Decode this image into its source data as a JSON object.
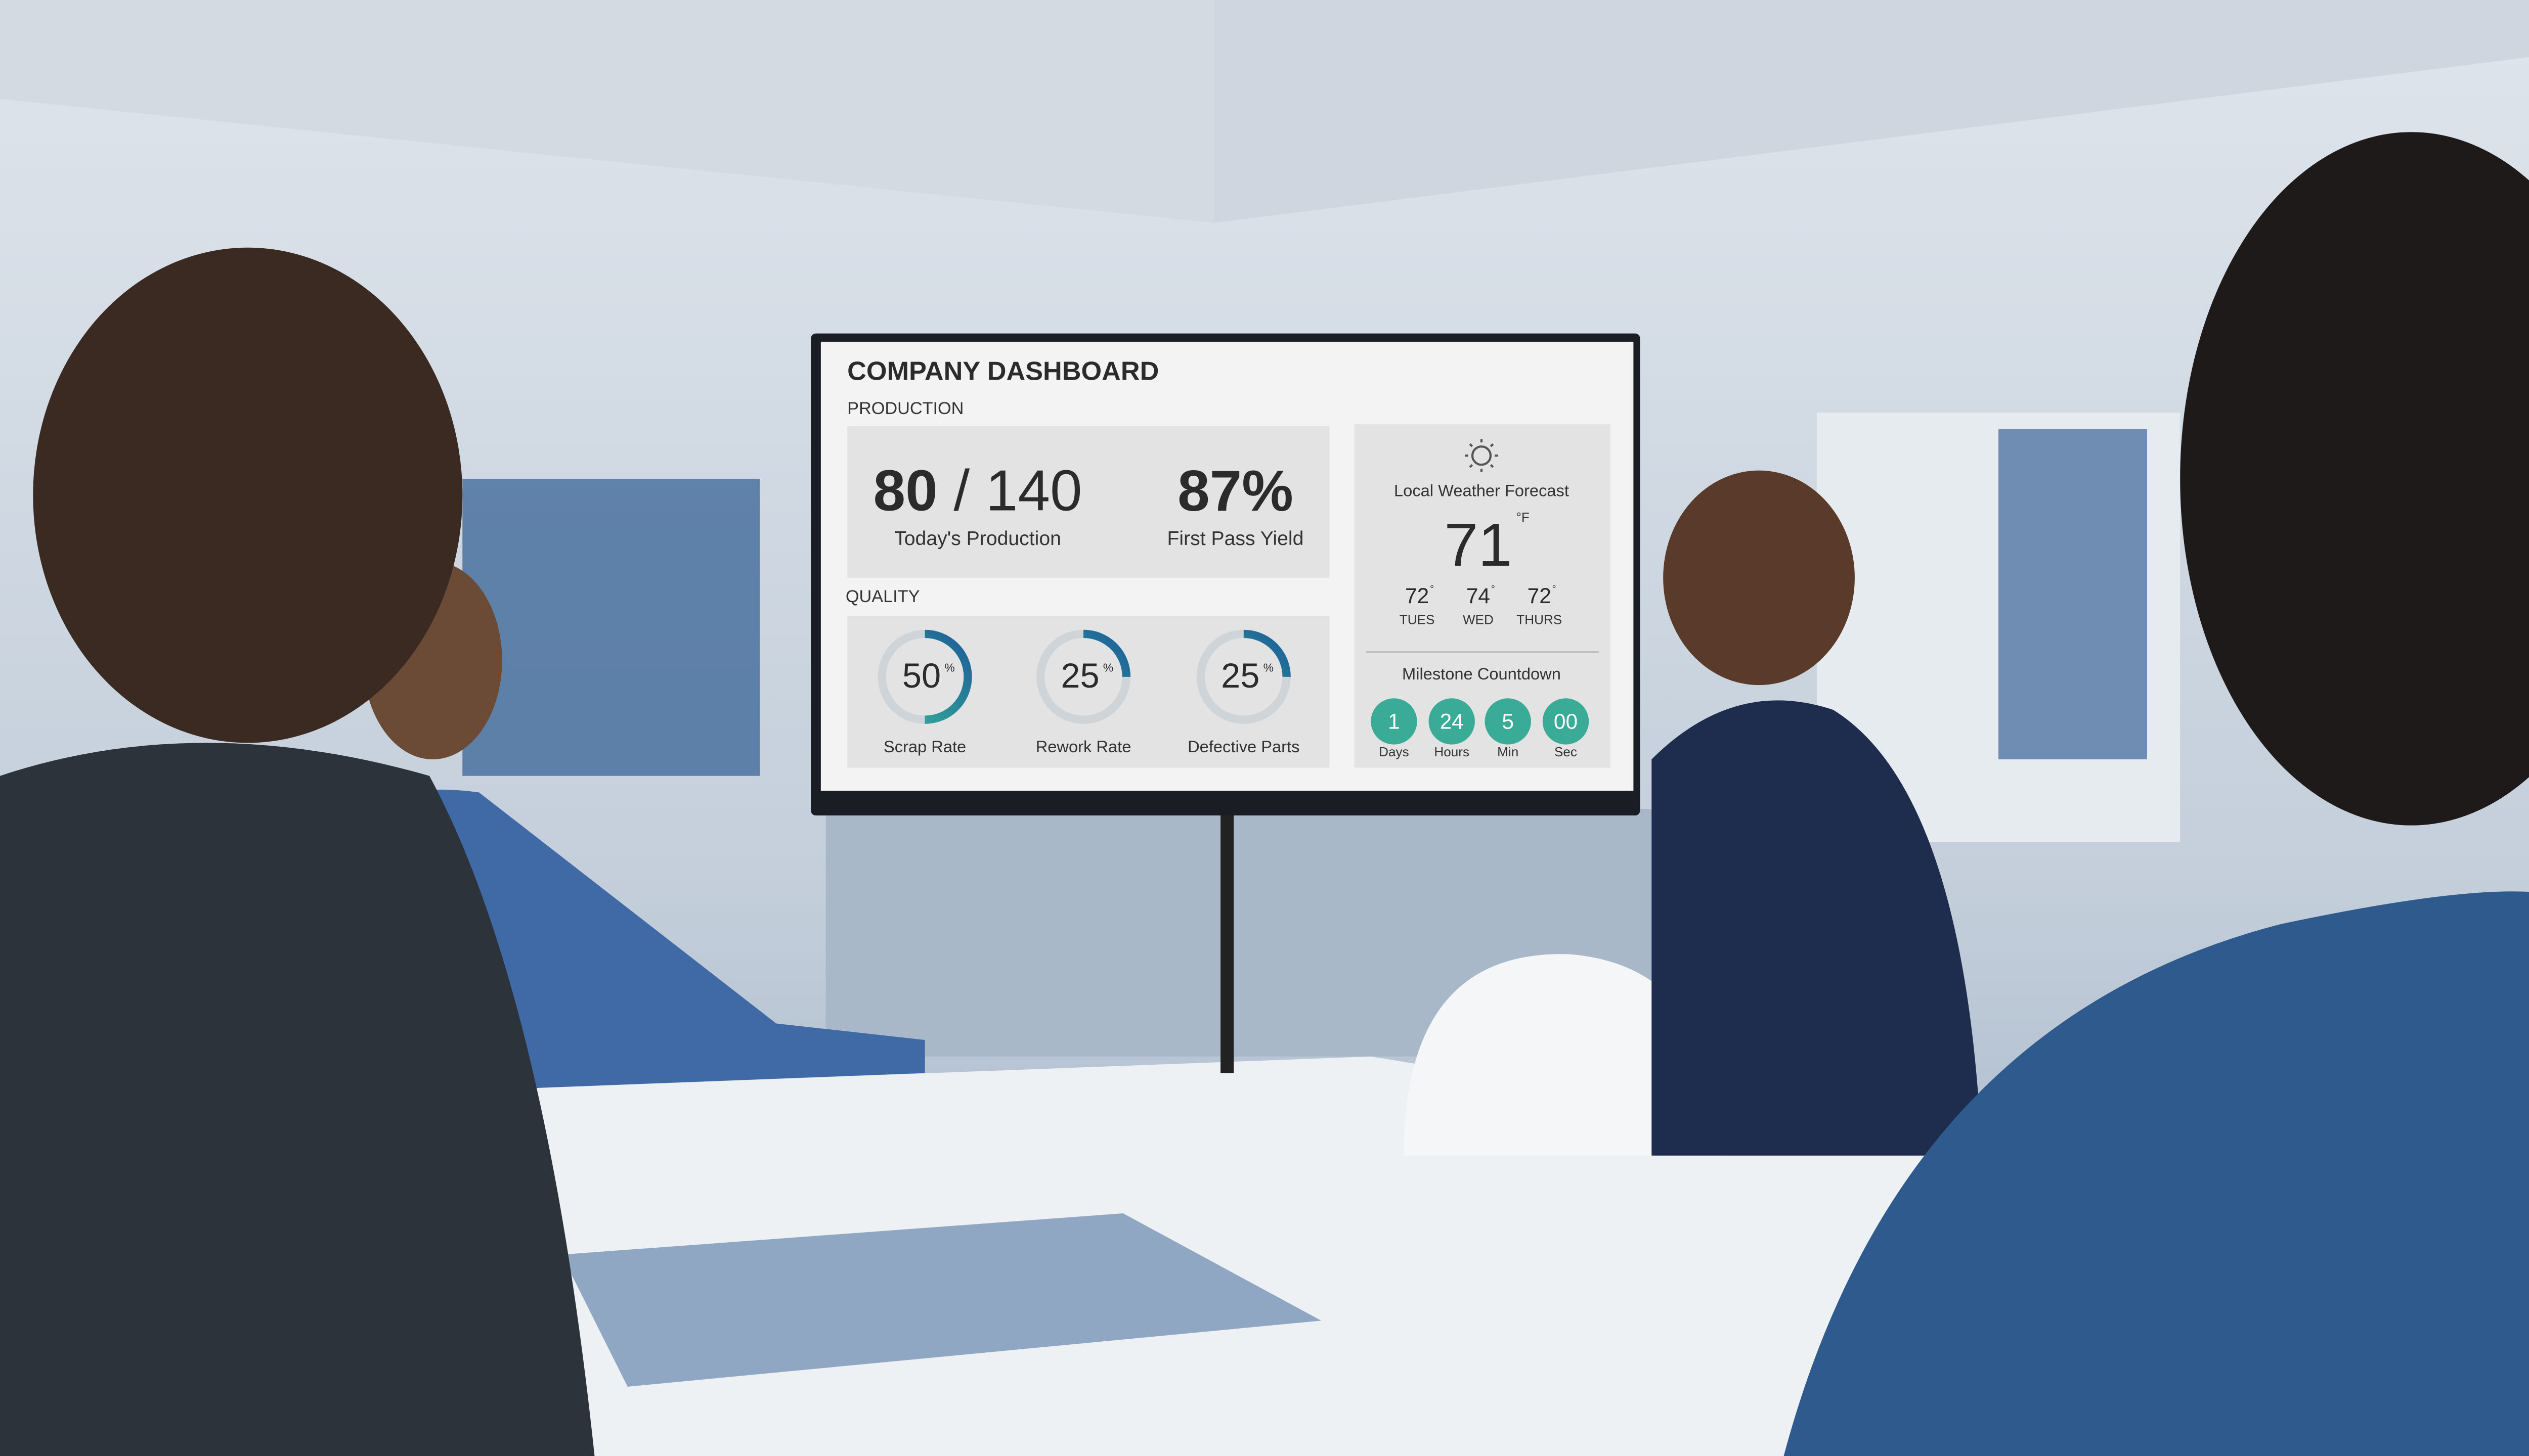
{
  "title": "COMPANY DASHBOARD",
  "production": {
    "heading": "PRODUCTION",
    "actual": 80,
    "separator": "/",
    "target": 140,
    "production_label": "Today's Production",
    "yield": "87%",
    "yield_label": "First Pass Yield"
  },
  "quality": {
    "heading": "QUALITY",
    "gauges": [
      {
        "value": 50,
        "unit": "%",
        "label": "Scrap Rate"
      },
      {
        "value": 25,
        "unit": "%",
        "label": "Rework Rate"
      },
      {
        "value": 25,
        "unit": "%",
        "label": "Defective Parts"
      }
    ]
  },
  "weather": {
    "heading": "Local Weather Forecast",
    "current": 71,
    "unit": "°F",
    "degree_symbol": "°",
    "forecast": [
      {
        "temp": 72,
        "day": "TUES"
      },
      {
        "temp": 74,
        "day": "WED"
      },
      {
        "temp": 72,
        "day": "THURS"
      }
    ]
  },
  "countdown": {
    "heading": "Milestone Countdown",
    "items": [
      {
        "value": "1",
        "label": "Days"
      },
      {
        "value": "24",
        "label": "Hours"
      },
      {
        "value": "5",
        "label": "Min"
      },
      {
        "value": "00",
        "label": "Sec"
      }
    ]
  }
}
